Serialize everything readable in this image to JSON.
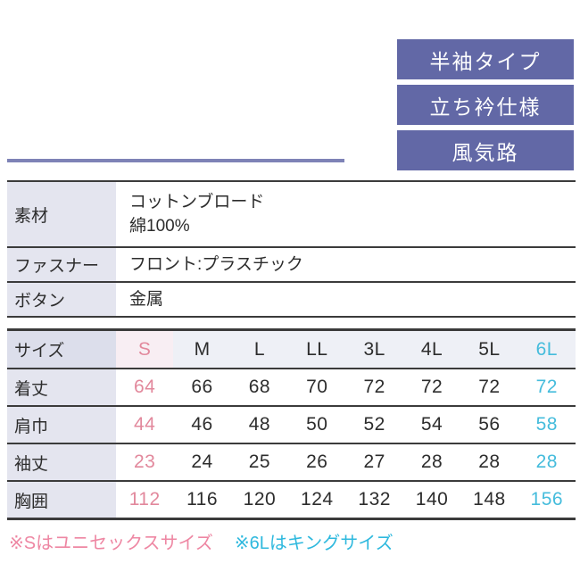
{
  "badges": [
    {
      "label": "半袖タイプ"
    },
    {
      "label": "立ち衿仕様"
    },
    {
      "label": "風気路"
    }
  ],
  "spec_table": {
    "rows": [
      {
        "label": "素材",
        "value_lines": [
          "コットンブロード",
          "綿100%"
        ]
      },
      {
        "label": "ファスナー",
        "value_lines": [
          "フロント:プラスチック"
        ]
      },
      {
        "label": "ボタン",
        "value_lines": [
          "金属"
        ]
      }
    ]
  },
  "size_table": {
    "header_label": "サイズ",
    "columns": [
      "S",
      "M",
      "L",
      "LL",
      "3L",
      "4L",
      "5L",
      "6L"
    ],
    "rows": [
      {
        "label": "着丈",
        "values": [
          "64",
          "66",
          "68",
          "70",
          "72",
          "72",
          "72",
          "72"
        ]
      },
      {
        "label": "肩巾",
        "values": [
          "44",
          "46",
          "48",
          "50",
          "52",
          "54",
          "56",
          "58"
        ]
      },
      {
        "label": "袖丈",
        "values": [
          "23",
          "24",
          "25",
          "26",
          "27",
          "28",
          "28",
          "28"
        ]
      },
      {
        "label": "胸囲",
        "values": [
          "112",
          "116",
          "120",
          "124",
          "132",
          "140",
          "148",
          "156"
        ]
      }
    ]
  },
  "notes": [
    {
      "id": "note-s",
      "text": "※Sはユニセックスサイズ"
    },
    {
      "id": "note-6l",
      "text": "※6Lはキングサイズ"
    }
  ],
  "colors": {
    "badge_bg": "#6268a6",
    "line": "#7e83b6",
    "label_bg": "#e4e5ef",
    "head_label_bg": "#dcdeeb",
    "head_bg": "#eef0f6",
    "s_head_bg": "#f8eef3",
    "pink": "#e2889c",
    "cyan": "#45bcdc",
    "note_pink": "#ee87a3",
    "note_cyan": "#2fb9de",
    "ink": "#2d2d2d",
    "border": "#3b3b3b"
  }
}
